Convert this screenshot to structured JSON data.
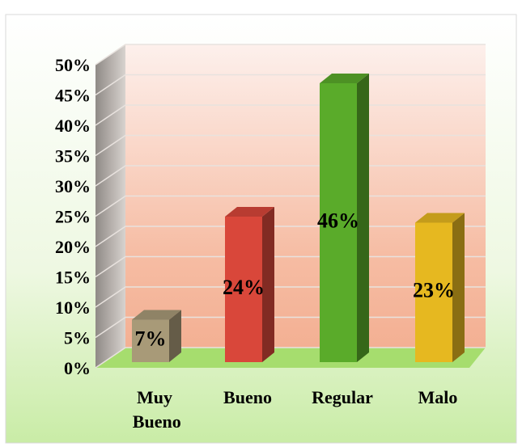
{
  "chart_data": {
    "type": "bar3d",
    "categories": [
      "Muy Bueno",
      "Bueno",
      "Regular",
      "Malo"
    ],
    "values": [
      7,
      24,
      46,
      23
    ],
    "value_labels": [
      "7%",
      "24%",
      "46%",
      "23%"
    ],
    "colors": [
      "#a89a78",
      "#d9473a",
      "#5aab2a",
      "#e6b820"
    ],
    "ylim": [
      0,
      50
    ],
    "yticks": [
      {
        "value": 0,
        "label": "0%"
      },
      {
        "value": 5,
        "label": "5%"
      },
      {
        "value": 10,
        "label": "10%"
      },
      {
        "value": 15,
        "label": "15%"
      },
      {
        "value": 20,
        "label": "20%"
      },
      {
        "value": 25,
        "label": "25%"
      },
      {
        "value": 30,
        "label": "30%"
      },
      {
        "value": 35,
        "label": "35%"
      },
      {
        "value": 40,
        "label": "40%"
      },
      {
        "value": 45,
        "label": "45%"
      },
      {
        "value": 50,
        "label": "50%"
      }
    ],
    "grid": true
  }
}
